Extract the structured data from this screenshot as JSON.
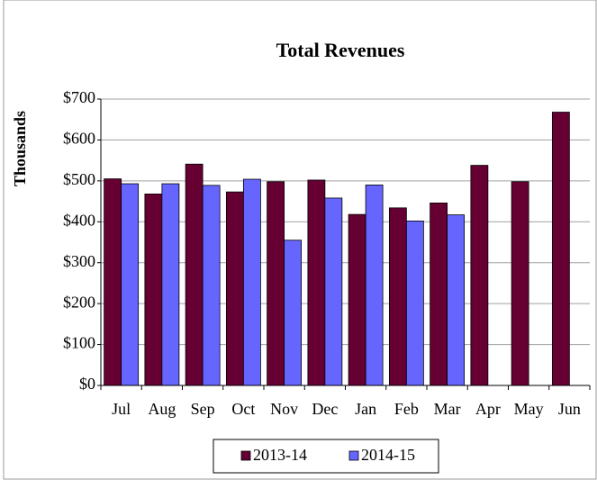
{
  "chart_data": {
    "type": "bar",
    "title": "Total Revenues",
    "ylabel": "Thousands",
    "categories": [
      "Jul",
      "Aug",
      "Sep",
      "Oct",
      "Nov",
      "Dec",
      "Jan",
      "Feb",
      "Mar",
      "Apr",
      "May",
      "Jun"
    ],
    "series": [
      {
        "name": "2013-14",
        "color": "#660033",
        "values": [
          505,
          468,
          541,
          473,
          498,
          502,
          418,
          434,
          446,
          538,
          498,
          668
        ]
      },
      {
        "name": "2014-15",
        "color": "#6666ff",
        "values": [
          493,
          493,
          489,
          504,
          355,
          458,
          490,
          402,
          417,
          null,
          null,
          null
        ]
      }
    ],
    "ylim": [
      0,
      700
    ],
    "yticks": [
      {
        "value": 0,
        "label": "$0"
      },
      {
        "value": 100,
        "label": "$100"
      },
      {
        "value": 200,
        "label": "$200"
      },
      {
        "value": 300,
        "label": "$300"
      },
      {
        "value": 400,
        "label": "$400"
      },
      {
        "value": 500,
        "label": "$500"
      },
      {
        "value": 600,
        "label": "$600"
      },
      {
        "value": 700,
        "label": "$700"
      }
    ],
    "grid": true,
    "legend": "bottom"
  }
}
